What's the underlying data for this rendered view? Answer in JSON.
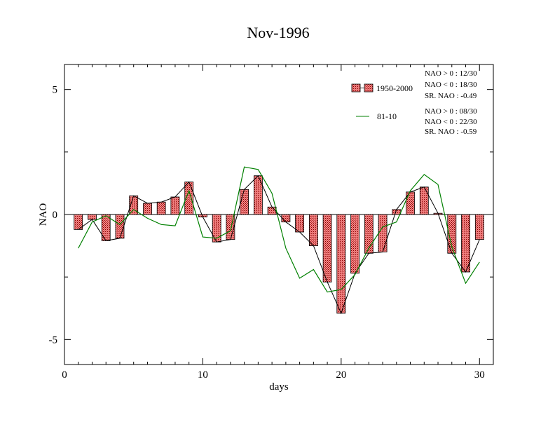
{
  "chart_data": {
    "type": "bar",
    "title": "Nov-1996",
    "xlabel": "days",
    "ylabel": "NAO",
    "xlim": [
      0,
      31
    ],
    "ylim": [
      -6,
      6
    ],
    "xticks": [
      0,
      10,
      20,
      30
    ],
    "xtick_labels": [
      "0",
      "10",
      "20",
      "30"
    ],
    "yticks": [
      -5,
      0,
      5
    ],
    "ytick_labels": [
      "-5",
      "0",
      "5"
    ],
    "x": [
      1,
      2,
      3,
      4,
      5,
      6,
      7,
      8,
      9,
      10,
      11,
      12,
      13,
      14,
      15,
      16,
      17,
      18,
      19,
      20,
      21,
      22,
      23,
      24,
      25,
      26,
      27,
      28,
      29,
      30
    ],
    "series": [
      {
        "name": "1950-2000",
        "kind": "bar",
        "color": "#f08080",
        "values": [
          -0.6,
          -0.2,
          -1.05,
          -0.95,
          0.75,
          0.45,
          0.5,
          0.7,
          1.3,
          -0.1,
          -1.1,
          -1.0,
          1.0,
          1.55,
          0.3,
          -0.3,
          -0.7,
          -1.25,
          -2.7,
          -3.95,
          -2.35,
          -1.55,
          -1.5,
          0.2,
          0.9,
          1.1,
          0.05,
          -1.55,
          -2.3,
          -1.0
        ]
      },
      {
        "name": "81-10",
        "kind": "line",
        "color": "#008000",
        "values": [
          -1.35,
          -0.3,
          -0.05,
          -0.4,
          0.2,
          -0.15,
          -0.4,
          -0.45,
          0.95,
          -0.9,
          -0.95,
          -0.65,
          1.9,
          1.8,
          0.85,
          -1.35,
          -2.55,
          -2.2,
          -3.1,
          -3.0,
          -2.4,
          -1.35,
          -0.5,
          -0.3,
          0.95,
          1.6,
          1.2,
          -1.3,
          -2.75,
          -1.9
        ]
      }
    ],
    "legend_position": "top-right",
    "annotations": {
      "block1": [
        "NAO > 0 : 12/30",
        "NAO < 0 : 18/30",
        "SR. NAO : -0.49"
      ],
      "block2": [
        "NAO > 0 : 08/30",
        "NAO < 0 : 22/30",
        "SR. NAO : -0.59"
      ]
    },
    "grid": false
  }
}
